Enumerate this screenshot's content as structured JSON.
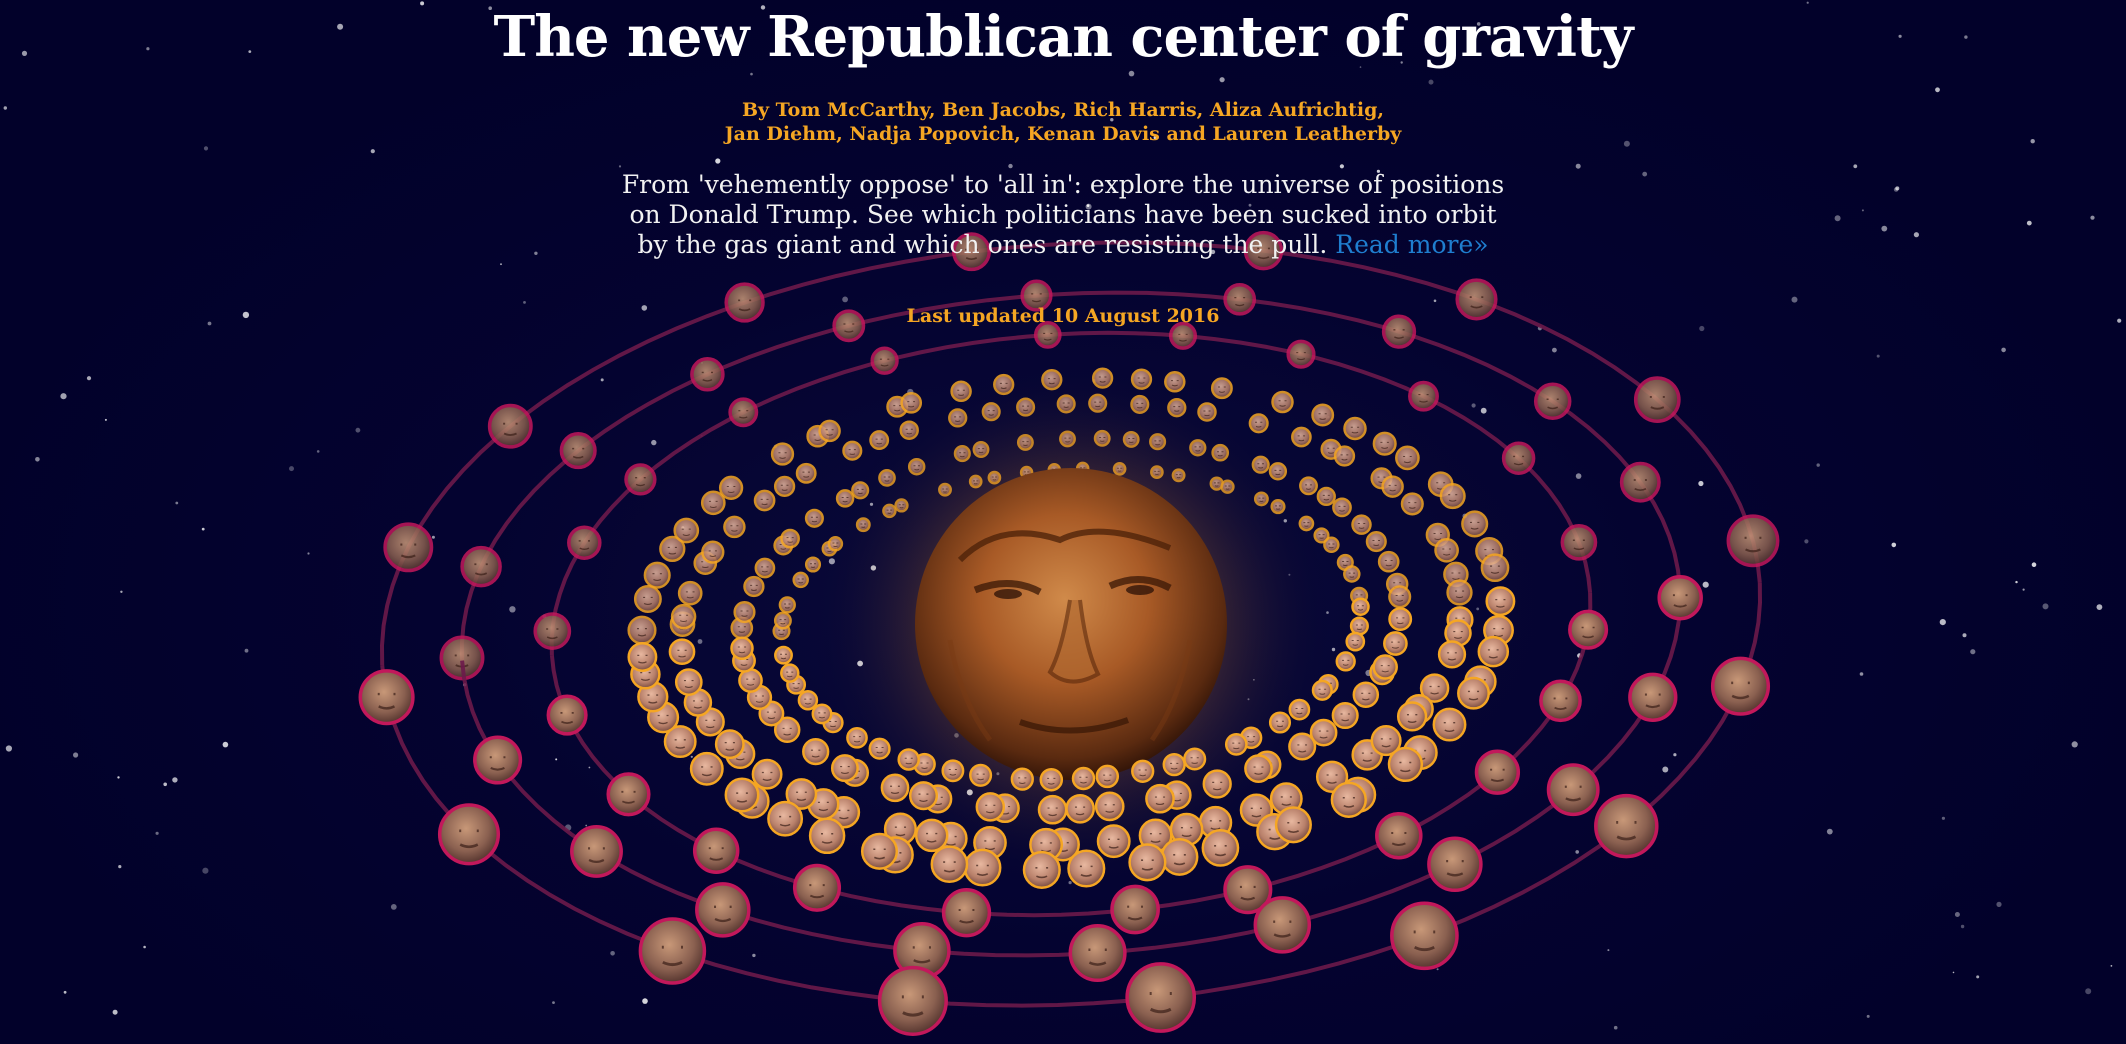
{
  "article": {
    "title": "The new Republican center of gravity",
    "byline_line1": "By Tom McCarthy, Ben Jacobs, Rich Harris, Aliza Aufrichtig,",
    "byline_line2": "Jan Diehm, Nadja Popovich, Kenan Davis and Lauren Leatherby",
    "standfirst": "From 'vehemently oppose' to 'all in': explore the universe of positions on Donald Trump. See which politicians have been sucked into orbit by the gas giant and which ones are resisting the pull.",
    "read_more_label": "Read more»",
    "last_updated": "Last updated 10 August 2016"
  },
  "visualization": {
    "center_planet": "trump-face-planet-icon",
    "colors": {
      "inner_ring_outline": "#f5a623",
      "outer_ring_outline": "#c2185b",
      "orbit_path": "#6b1a4a",
      "title_text": "#ffffff",
      "byline_text": "#f5a623",
      "link_text": "#1f7ecf",
      "background": "#02012a"
    }
  }
}
